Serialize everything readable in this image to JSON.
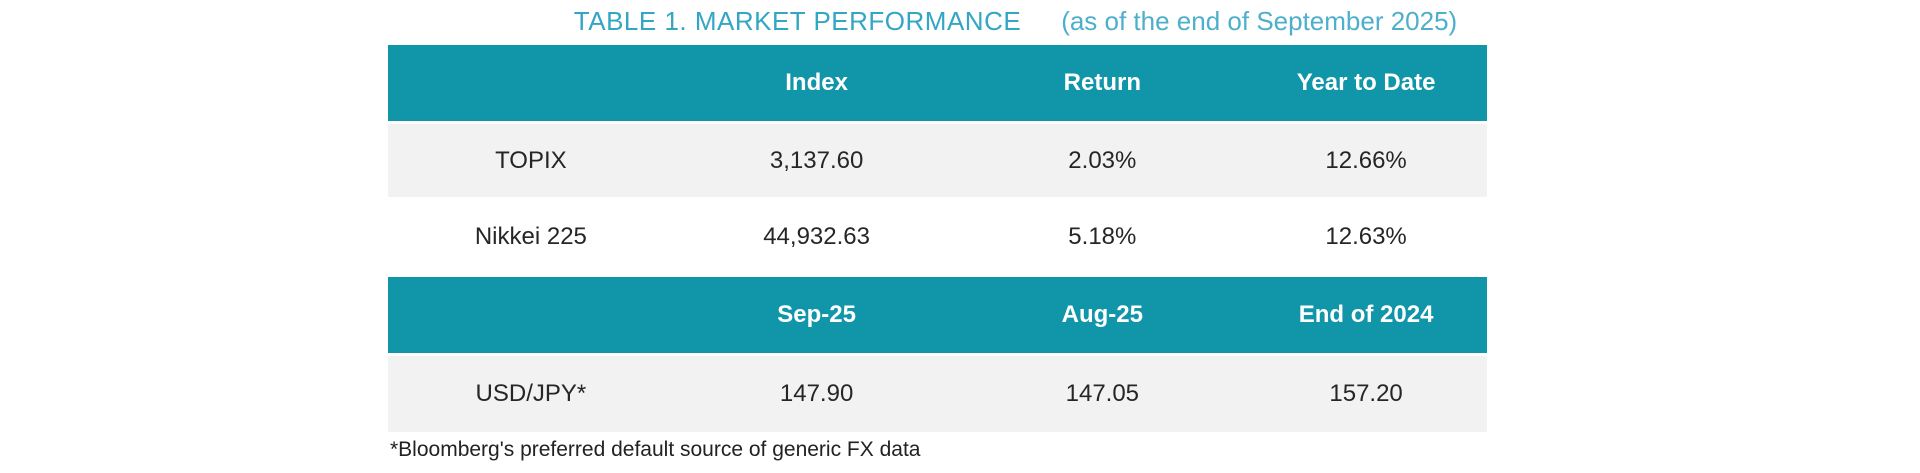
{
  "title": {
    "main": "TABLE 1. MARKET PERFORMANCE",
    "subtitle": "(as of the end of September 2025)"
  },
  "table1": {
    "headers": [
      "",
      "Index",
      "Return",
      "Year to Date"
    ],
    "rows": [
      {
        "label": "TOPIX",
        "values": [
          "3,137.60",
          "2.03%",
          "12.66%"
        ]
      },
      {
        "label": "Nikkei 225",
        "values": [
          "44,932.63",
          "5.18%",
          "12.63%"
        ]
      }
    ]
  },
  "table2": {
    "headers": [
      "",
      "Sep-25",
      "Aug-25",
      "End of 2024"
    ],
    "rows": [
      {
        "label": "USD/JPY*",
        "values": [
          "147.90",
          "147.05",
          "157.20"
        ]
      }
    ]
  },
  "footnote": "*Bloomberg's preferred default source of generic FX data",
  "colors": {
    "header_bg": "#1195A9",
    "row_alt_bg": "#F2F2F2",
    "title_main": "#33A6C4",
    "title_subtitle": "#4DAFCB",
    "body_text": "#262626"
  }
}
